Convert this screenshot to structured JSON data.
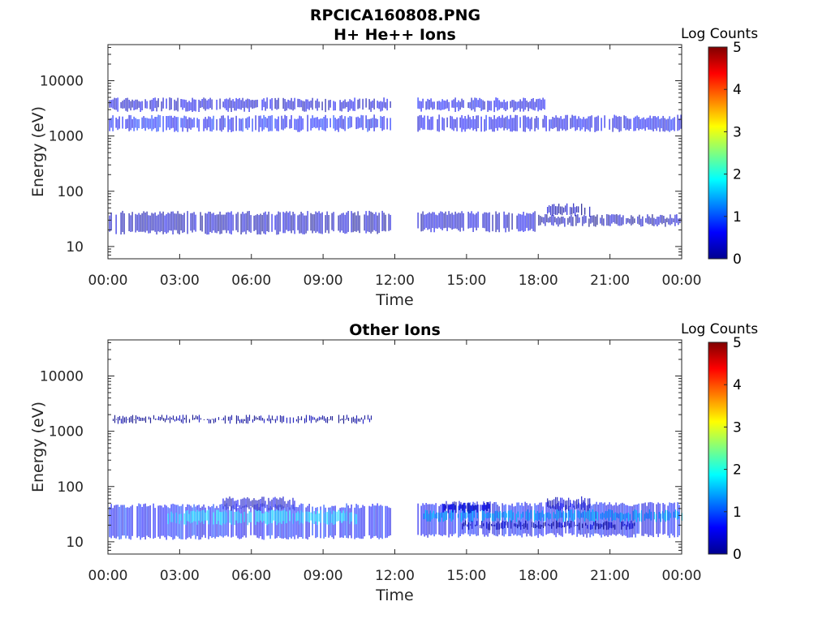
{
  "figure": {
    "title": "RPCICA160808.PNG"
  },
  "chart_data": [
    {
      "type": "heatmap",
      "title": "H+ He++ Ions",
      "xlabel": "Time",
      "ylabel": "Energy (eV)",
      "xlim_hours": [
        0,
        24
      ],
      "ylim": [
        6,
        45000
      ],
      "yscale": "log",
      "xticks": [
        "00:00",
        "03:00",
        "06:00",
        "09:00",
        "12:00",
        "15:00",
        "18:00",
        "21:00",
        "00:00"
      ],
      "yticks": [
        "10",
        "100",
        "1000",
        "10000"
      ],
      "ytick_values": [
        10,
        100,
        1000,
        10000
      ],
      "data_gap_hours": [
        11.85,
        12.95
      ],
      "colorbar": {
        "label": "Log Counts",
        "range": [
          0,
          5
        ],
        "ticks": [
          "0",
          "1",
          "2",
          "3",
          "4",
          "5"
        ]
      },
      "bands": [
        {
          "t_start": 0.05,
          "t_end": 11.85,
          "e_low": 3000,
          "e_high": 4500,
          "log_counts": 0.4
        },
        {
          "t_start": 0.05,
          "t_end": 11.85,
          "e_low": 1300,
          "e_high": 2200,
          "log_counts": 0.65
        },
        {
          "t_start": 0.05,
          "t_end": 11.85,
          "e_low": 18,
          "e_high": 40,
          "log_counts": 0.3
        },
        {
          "t_start": 12.95,
          "t_end": 18.3,
          "e_low": 3000,
          "e_high": 4500,
          "log_counts": 0.5
        },
        {
          "t_start": 12.95,
          "t_end": 24.0,
          "e_low": 1300,
          "e_high": 2200,
          "log_counts": 0.55
        },
        {
          "t_start": 12.95,
          "t_end": 18.0,
          "e_low": 20,
          "e_high": 40,
          "log_counts": 0.35
        },
        {
          "t_start": 18.0,
          "t_end": 24.0,
          "e_low": 25,
          "e_high": 35,
          "log_counts": 0.2
        },
        {
          "t_start": 18.3,
          "t_end": 20.2,
          "e_low": 38,
          "e_high": 55,
          "log_counts": 0.25
        }
      ]
    },
    {
      "type": "heatmap",
      "title": "Other Ions",
      "xlabel": "Time",
      "ylabel": "Energy (eV)",
      "xlim_hours": [
        0,
        24
      ],
      "ylim": [
        6,
        45000
      ],
      "yscale": "log",
      "xticks": [
        "00:00",
        "03:00",
        "06:00",
        "09:00",
        "12:00",
        "15:00",
        "18:00",
        "21:00",
        "00:00"
      ],
      "yticks": [
        "10",
        "100",
        "1000",
        "10000"
      ],
      "ytick_values": [
        10,
        100,
        1000,
        10000
      ],
      "data_gap_hours": [
        11.85,
        12.95
      ],
      "colorbar": {
        "label": "Log Counts",
        "range": [
          0,
          5
        ],
        "ticks": [
          "0",
          "1",
          "2",
          "3",
          "4",
          "5"
        ]
      },
      "bands": [
        {
          "t_start": 0.05,
          "t_end": 11.85,
          "e_low": 12,
          "e_high": 45,
          "log_counts": 0.7
        },
        {
          "t_start": 2.5,
          "t_end": 10.5,
          "e_low": 22,
          "e_high": 35,
          "log_counts": 1.6
        },
        {
          "t_start": 4.8,
          "t_end": 7.8,
          "e_low": 40,
          "e_high": 60,
          "log_counts": 0.4
        },
        {
          "t_start": 0.2,
          "t_end": 11.0,
          "e_low": 1500,
          "e_high": 1800,
          "log_counts": 0.1
        },
        {
          "t_start": 12.95,
          "t_end": 24.0,
          "e_low": 13,
          "e_high": 48,
          "log_counts": 0.6
        },
        {
          "t_start": 13.2,
          "t_end": 24.0,
          "e_low": 25,
          "e_high": 35,
          "log_counts": 1.5
        },
        {
          "t_start": 14.0,
          "t_end": 16.0,
          "e_low": 36,
          "e_high": 50,
          "log_counts": 0.3
        },
        {
          "t_start": 18.3,
          "t_end": 20.2,
          "e_low": 40,
          "e_high": 60,
          "log_counts": 0.3
        },
        {
          "t_start": 14.8,
          "t_end": 22.0,
          "e_low": 18,
          "e_high": 22,
          "log_counts": 0.2
        }
      ]
    }
  ]
}
